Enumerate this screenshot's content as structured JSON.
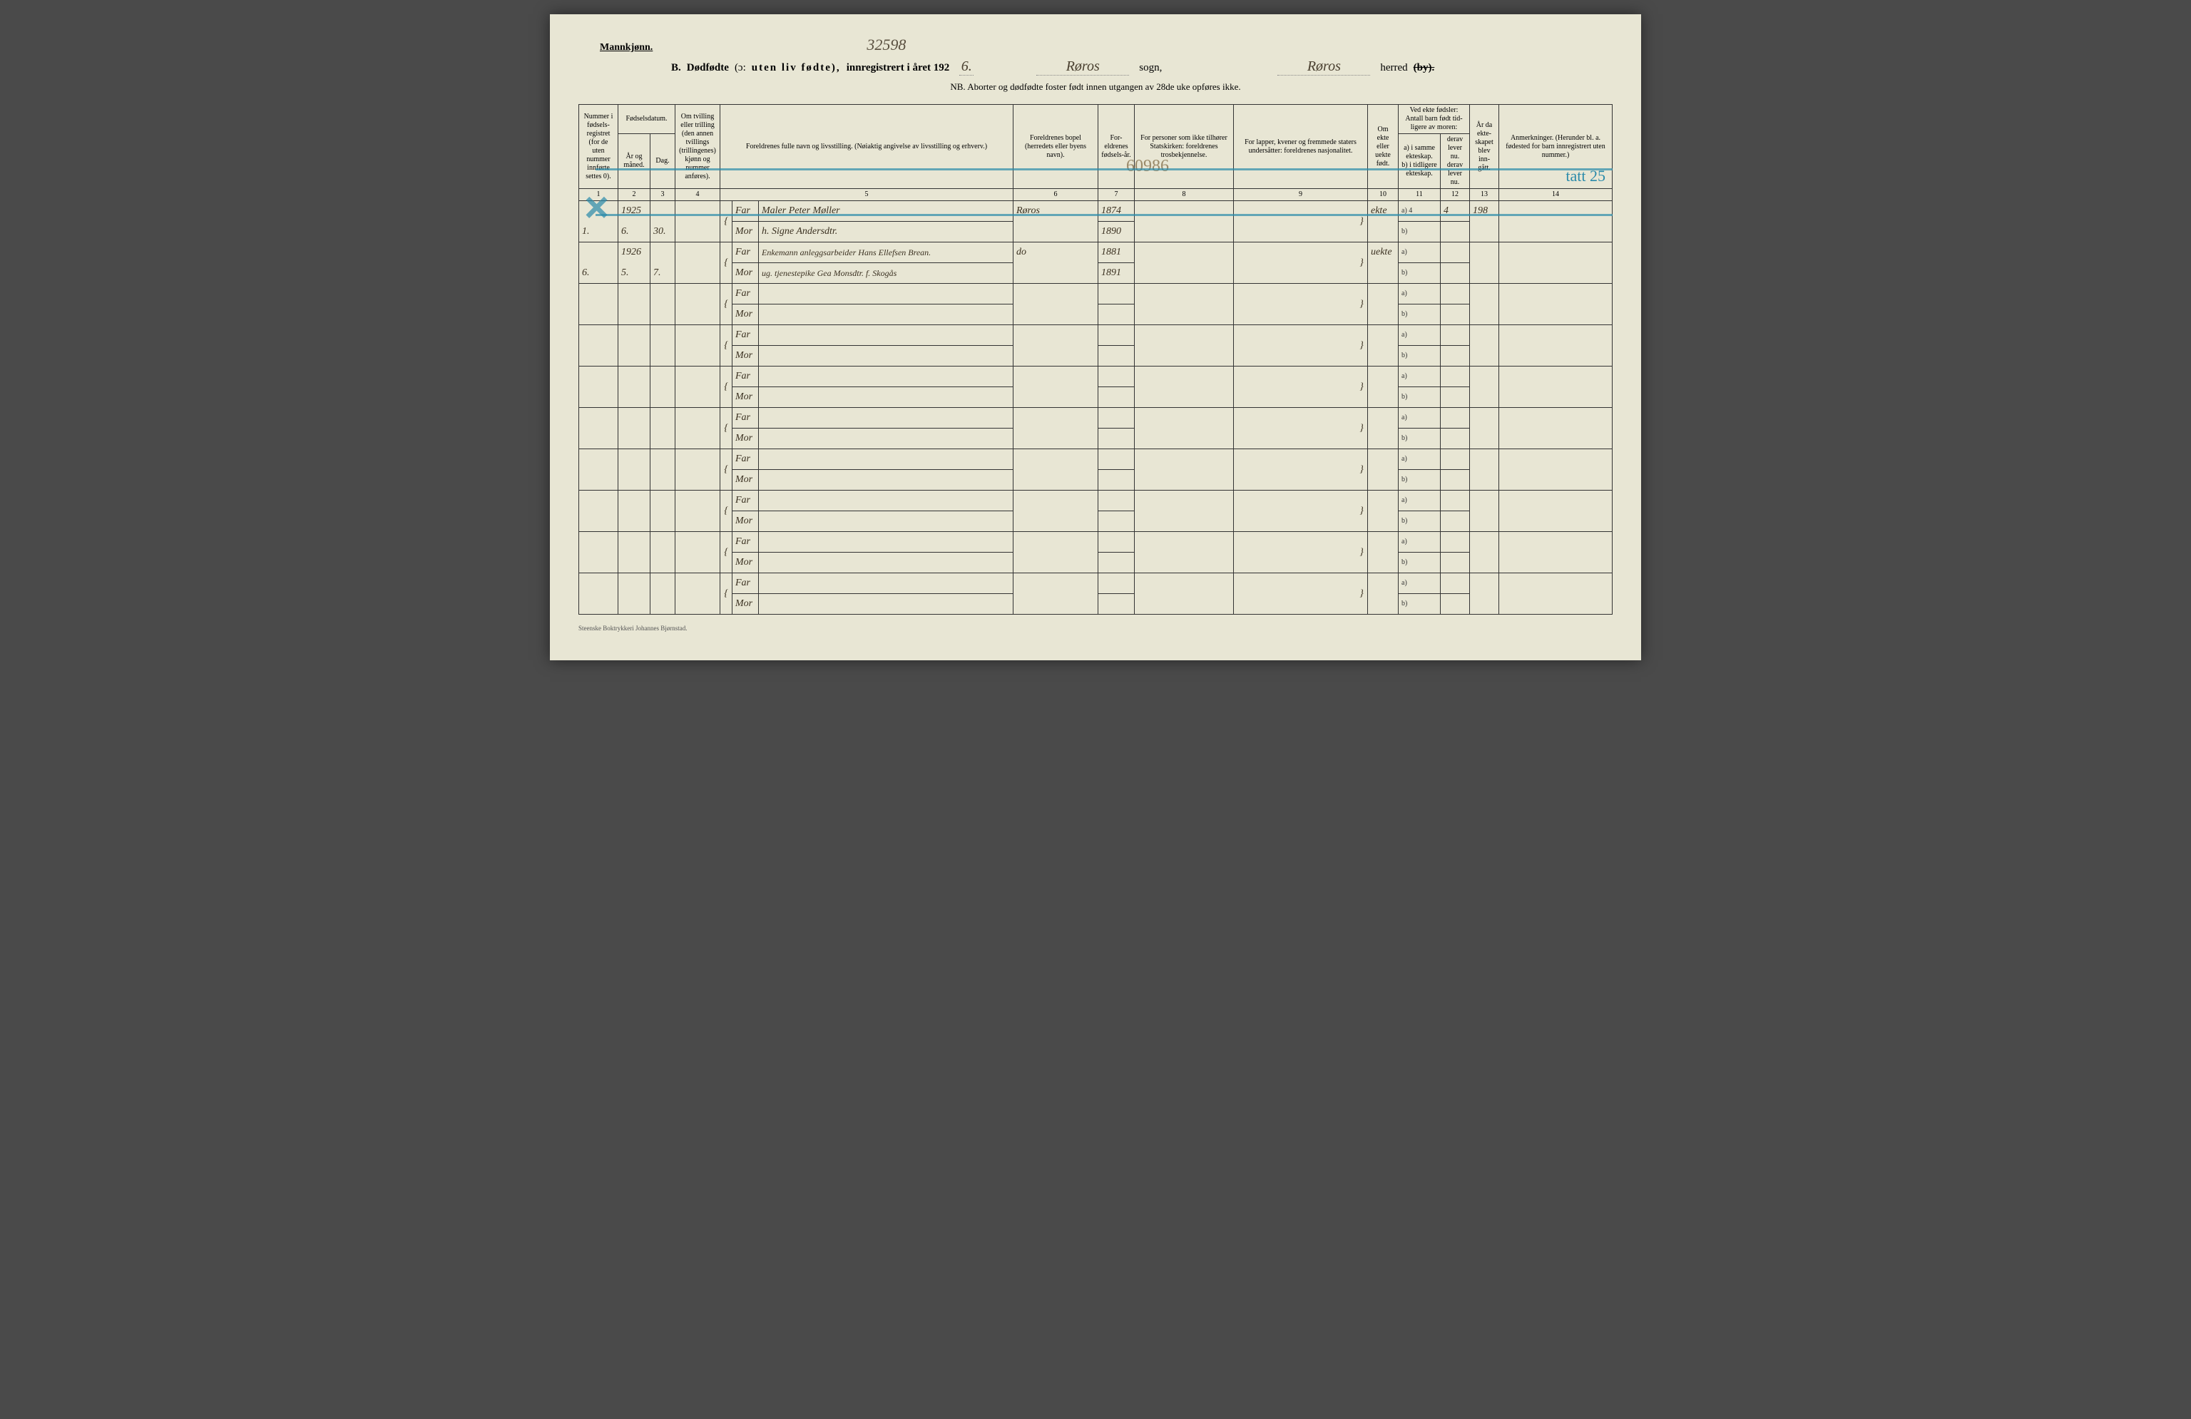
{
  "header": {
    "gender": "Mannkjønn.",
    "handwritten_top": "32598",
    "section_letter": "B.",
    "title_bold": "Dødfødte",
    "title_paren": "(ɔ:",
    "title_spaced": "uten liv fødte),",
    "title_rest": "innregistrert i året 192",
    "year_suffix": "6.",
    "sogn_value": "Røros",
    "sogn_label": "sogn,",
    "herred_value": "Røros",
    "herred_label": "herred",
    "herred_struck": "(by).",
    "nb_line": "NB. Aborter og dødfødte foster født innen utgangen av 28de uke opføres ikke."
  },
  "columns": {
    "c1": "Nummer i fødsels-registret (for de uten nummer innførte settes 0).",
    "c2_top": "Fødselsdatum.",
    "c2_a": "År og måned.",
    "c2_b": "Dag.",
    "c4": "Om tvilling eller trilling (den annen tvillings (trillingenes) kjønn og nummer anføres).",
    "c5": "Foreldrenes fulle navn og livsstilling. (Nøiaktig angivelse av livsstilling og erhverv.)",
    "c6": "Foreldrenes bopel (herredets eller byens navn).",
    "c7": "For-eldrenes fødsels-år.",
    "c8": "For personer som ikke tilhører Statskirken: foreldrenes trosbekjennelse.",
    "c9": "For lapper, kvener og fremmede staters undersåtter: foreldrenes nasjonalitet.",
    "c10": "Om ekte eller uekte født.",
    "c11_top": "Ved ekte fødsler: Antall barn født tid-ligere av moren:",
    "c11_a": "a) i samme ekteskap.",
    "c11_b": "b) i tidligere ekteskap.",
    "c12_a": "derav lever nu.",
    "c12_b": "derav lever nu.",
    "c13": "År da ekte-skapet blev inn-gått.",
    "c14": "Anmerkninger. (Herunder bl. a. fødested for barn innregistrert uten nummer.)",
    "nums": [
      "1",
      "2",
      "3",
      "4",
      "5",
      "6",
      "7",
      "8",
      "9",
      "10",
      "11",
      "12",
      "13",
      "14"
    ]
  },
  "labels": {
    "far": "Far",
    "mor": "Mor",
    "a": "a)",
    "b": "b)"
  },
  "rows": [
    {
      "num": "1.",
      "year_month_top": "1925",
      "year_month_bot": "6.",
      "day": "30.",
      "far_name": "Maler Peter Møller",
      "mor_name": "h. Signe Andersdtr.",
      "bopel": "Røros",
      "far_year": "1874",
      "mor_year": "1890",
      "ekte": "ekte",
      "a_val": "4",
      "derav_a": "4",
      "aar": "198"
    },
    {
      "num": "6.",
      "year_month_top": "1926",
      "year_month_bot": "5.",
      "day": "7.",
      "far_name": "Enkemann anleggsarbeider Hans Ellefsen Brean.",
      "mor_name": "ug. tjenestepike Gea Monsdtr. f. Skogås",
      "bopel": "do",
      "far_year": "1881",
      "mor_year": "1891",
      "ekte": "uekte",
      "a_val": "",
      "derav_a": "",
      "aar": ""
    }
  ],
  "annotations": {
    "pencil_8_9": "60986",
    "blue_note_right": "tatt 25"
  },
  "footer": "Steenske Boktrykkeri Johannes Bjørnstad."
}
